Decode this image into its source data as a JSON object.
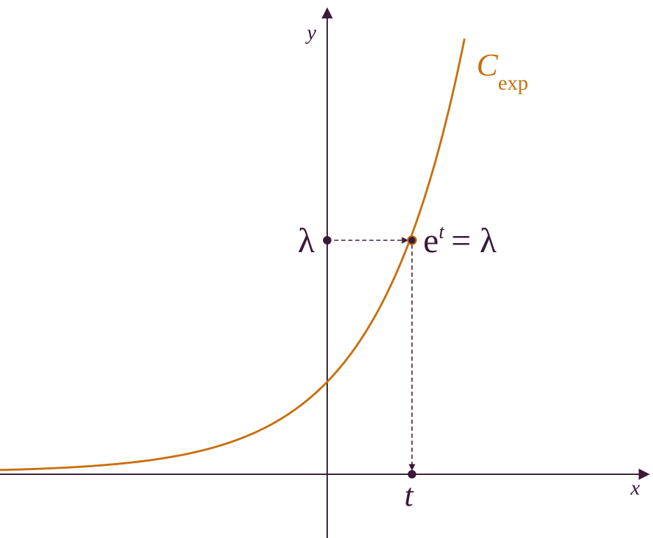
{
  "axes": {
    "x": "x",
    "y": "y"
  },
  "curve": {
    "label": "C",
    "subscript": "exp"
  },
  "points": {
    "lambda": "λ",
    "equation": {
      "base": "e",
      "exponent": "t",
      "rest": "= λ"
    },
    "t": "t"
  }
}
